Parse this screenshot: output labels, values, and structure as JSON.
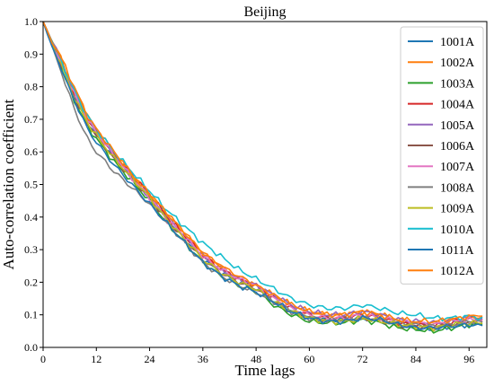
{
  "chart_data": {
    "type": "line",
    "title": "Beijing",
    "xlabel": "Time lags",
    "ylabel": "Auto-correlation coefficient",
    "xlim": [
      0,
      100
    ],
    "ylim": [
      0.0,
      1.0
    ],
    "xticks": [
      0,
      12,
      24,
      36,
      48,
      60,
      72,
      84,
      96
    ],
    "xtick_labels": [
      "0",
      "12",
      "24",
      "36",
      "48",
      "60",
      "72",
      "84",
      "96"
    ],
    "yticks": [
      0.0,
      0.1,
      0.2,
      0.3,
      0.4,
      0.5,
      0.6,
      0.7,
      0.8,
      0.9,
      1.0
    ],
    "ytick_labels": [
      "0.0",
      "0.1",
      "0.2",
      "0.3",
      "0.4",
      "0.5",
      "0.6",
      "0.7",
      "0.8",
      "0.9",
      "1.0"
    ],
    "grid": false,
    "legend_position": "top-right",
    "x": [
      0,
      2,
      4,
      6,
      8,
      10,
      12,
      16,
      20,
      24,
      28,
      32,
      36,
      40,
      44,
      48,
      52,
      56,
      60,
      64,
      68,
      72,
      76,
      80,
      84,
      88,
      92,
      96,
      99
    ],
    "series": [
      {
        "name": "1001A",
        "color": "#1f77b4",
        "values": [
          1.0,
          0.93,
          0.87,
          0.8,
          0.74,
          0.69,
          0.65,
          0.58,
          0.52,
          0.46,
          0.39,
          0.33,
          0.27,
          0.23,
          0.2,
          0.18,
          0.14,
          0.11,
          0.09,
          0.085,
          0.085,
          0.09,
          0.08,
          0.065,
          0.06,
          0.055,
          0.065,
          0.07,
          0.068
        ]
      },
      {
        "name": "1002A",
        "color": "#ff7f0e",
        "values": [
          1.0,
          0.94,
          0.89,
          0.82,
          0.77,
          0.71,
          0.67,
          0.6,
          0.53,
          0.47,
          0.41,
          0.35,
          0.29,
          0.25,
          0.21,
          0.19,
          0.16,
          0.13,
          0.11,
          0.1,
          0.1,
          0.11,
          0.1,
          0.085,
          0.075,
          0.075,
          0.085,
          0.095,
          0.093
        ]
      },
      {
        "name": "1003A",
        "color": "#2ca02c",
        "values": [
          1.0,
          0.93,
          0.86,
          0.79,
          0.73,
          0.68,
          0.64,
          0.57,
          0.51,
          0.45,
          0.38,
          0.32,
          0.26,
          0.22,
          0.19,
          0.17,
          0.13,
          0.1,
          0.08,
          0.075,
          0.075,
          0.085,
          0.075,
          0.06,
          0.055,
          0.05,
          0.06,
          0.07,
          0.072
        ]
      },
      {
        "name": "1004A",
        "color": "#d62728",
        "values": [
          1.0,
          0.94,
          0.88,
          0.81,
          0.75,
          0.7,
          0.66,
          0.59,
          0.53,
          0.47,
          0.4,
          0.34,
          0.28,
          0.24,
          0.21,
          0.19,
          0.15,
          0.12,
          0.1,
          0.09,
          0.09,
          0.1,
          0.09,
          0.075,
          0.07,
          0.065,
          0.075,
          0.09,
          0.088
        ]
      },
      {
        "name": "1005A",
        "color": "#9467bd",
        "values": [
          1.0,
          0.94,
          0.88,
          0.81,
          0.75,
          0.7,
          0.66,
          0.59,
          0.52,
          0.46,
          0.4,
          0.34,
          0.28,
          0.24,
          0.21,
          0.19,
          0.16,
          0.13,
          0.11,
          0.1,
          0.1,
          0.11,
          0.1,
          0.085,
          0.08,
          0.075,
          0.08,
          0.09,
          0.087
        ]
      },
      {
        "name": "1006A",
        "color": "#8c564b",
        "values": [
          1.0,
          0.93,
          0.87,
          0.8,
          0.74,
          0.69,
          0.65,
          0.58,
          0.52,
          0.46,
          0.39,
          0.33,
          0.27,
          0.23,
          0.2,
          0.18,
          0.14,
          0.11,
          0.09,
          0.085,
          0.085,
          0.09,
          0.085,
          0.07,
          0.065,
          0.06,
          0.07,
          0.08,
          0.078
        ]
      },
      {
        "name": "1007A",
        "color": "#e377c2",
        "values": [
          1.0,
          0.93,
          0.87,
          0.81,
          0.75,
          0.7,
          0.66,
          0.59,
          0.52,
          0.46,
          0.39,
          0.34,
          0.28,
          0.24,
          0.21,
          0.19,
          0.15,
          0.12,
          0.1,
          0.09,
          0.09,
          0.1,
          0.09,
          0.08,
          0.075,
          0.07,
          0.08,
          0.085,
          0.083
        ]
      },
      {
        "name": "1008A",
        "color": "#7f7f7f",
        "values": [
          1.0,
          0.92,
          0.85,
          0.77,
          0.7,
          0.64,
          0.6,
          0.54,
          0.49,
          0.44,
          0.38,
          0.32,
          0.26,
          0.22,
          0.19,
          0.17,
          0.14,
          0.11,
          0.09,
          0.085,
          0.085,
          0.09,
          0.085,
          0.075,
          0.07,
          0.065,
          0.07,
          0.08,
          0.078
        ]
      },
      {
        "name": "1009A",
        "color": "#bcbd22",
        "values": [
          1.0,
          0.93,
          0.87,
          0.8,
          0.74,
          0.69,
          0.65,
          0.58,
          0.52,
          0.46,
          0.39,
          0.33,
          0.27,
          0.23,
          0.2,
          0.18,
          0.14,
          0.11,
          0.09,
          0.08,
          0.08,
          0.09,
          0.08,
          0.07,
          0.065,
          0.06,
          0.07,
          0.075,
          0.074
        ]
      },
      {
        "name": "1010A",
        "color": "#17becf",
        "values": [
          1.0,
          0.94,
          0.88,
          0.82,
          0.76,
          0.71,
          0.67,
          0.6,
          0.54,
          0.48,
          0.42,
          0.37,
          0.32,
          0.28,
          0.24,
          0.21,
          0.18,
          0.15,
          0.13,
          0.12,
          0.12,
          0.13,
          0.12,
          0.105,
          0.1,
          0.09,
          0.09,
          0.095,
          0.093
        ]
      },
      {
        "name": "1011A",
        "color": "#1f77b4",
        "values": [
          1.0,
          0.92,
          0.86,
          0.79,
          0.73,
          0.67,
          0.63,
          0.56,
          0.5,
          0.44,
          0.38,
          0.32,
          0.26,
          0.22,
          0.19,
          0.17,
          0.14,
          0.11,
          0.09,
          0.08,
          0.08,
          0.09,
          0.085,
          0.07,
          0.06,
          0.06,
          0.065,
          0.07,
          0.067
        ]
      },
      {
        "name": "1012A",
        "color": "#ff7f0e",
        "values": [
          1.0,
          0.94,
          0.89,
          0.83,
          0.77,
          0.71,
          0.67,
          0.6,
          0.53,
          0.47,
          0.41,
          0.35,
          0.29,
          0.25,
          0.22,
          0.19,
          0.16,
          0.13,
          0.11,
          0.1,
          0.1,
          0.11,
          0.1,
          0.085,
          0.08,
          0.08,
          0.085,
          0.095,
          0.096
        ]
      }
    ]
  }
}
